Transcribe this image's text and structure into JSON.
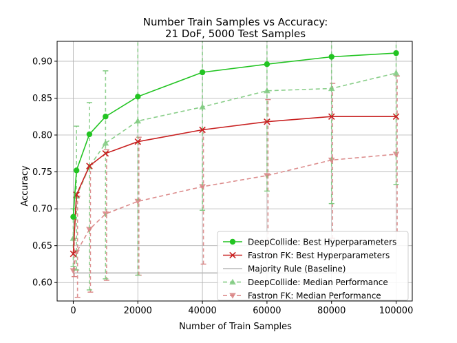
{
  "chart_data": {
    "type": "line",
    "title": "Number Train Samples vs Accuracy:",
    "subtitle": "21 DoF, 5000 Test Samples",
    "xlabel": "Number of Train Samples",
    "ylabel": "Accuracy",
    "xlim": [
      -5000,
      105000
    ],
    "ylim": [
      0.575,
      0.927
    ],
    "xticks": [
      0,
      20000,
      40000,
      60000,
      80000,
      100000
    ],
    "yticks": [
      0.6,
      0.65,
      0.7,
      0.75,
      0.8,
      0.85,
      0.9
    ],
    "grid": true,
    "legend_position": "lower right",
    "series": [
      {
        "name": "DeepCollide: Best Hyperparameters",
        "color": "#22c422",
        "style": "solid",
        "marker": "circle",
        "x": [
          0,
          1000,
          5000,
          10000,
          20000,
          40000,
          60000,
          80000,
          100000
        ],
        "y": [
          0.689,
          0.752,
          0.801,
          0.825,
          0.852,
          0.885,
          0.896,
          0.906,
          0.911
        ]
      },
      {
        "name": "Fastron FK: Best Hyperparameters",
        "color": "#c82020",
        "style": "solid",
        "marker": "x",
        "x": [
          0,
          1000,
          5000,
          10000,
          20000,
          40000,
          60000,
          80000,
          100000
        ],
        "y": [
          0.639,
          0.719,
          0.758,
          0.775,
          0.791,
          0.807,
          0.818,
          0.825,
          0.825
        ]
      },
      {
        "name": "Majority Rule (Baseline)",
        "color": "#b8b8b8",
        "style": "solid",
        "marker": "none",
        "x": [
          0,
          100000
        ],
        "y": [
          0.613,
          0.613
        ]
      },
      {
        "name": "DeepCollide: Median Performance",
        "color": "#7cc97c",
        "style": "dashed",
        "marker": "triangle-up",
        "x": [
          0,
          1000,
          5000,
          10000,
          20000,
          40000,
          60000,
          80000,
          100000
        ],
        "y": [
          0.66,
          0.717,
          0.757,
          0.789,
          0.819,
          0.838,
          0.86,
          0.863,
          0.884
        ],
        "err_low": [
          0.622,
          0.617,
          0.59,
          0.605,
          0.61,
          0.698,
          0.724,
          0.707,
          0.733
        ],
        "err_high": [
          0.7,
          0.812,
          0.844,
          0.887,
          0.935,
          0.935,
          0.935,
          0.935,
          0.935
        ]
      },
      {
        "name": "Fastron FK: Median Performance",
        "color": "#d88080",
        "style": "dashed",
        "marker": "triangle-down",
        "x": [
          0,
          1000,
          5000,
          10000,
          20000,
          40000,
          60000,
          80000,
          100000
        ],
        "y": [
          0.616,
          0.641,
          0.672,
          0.693,
          0.71,
          0.73,
          0.745,
          0.766,
          0.774
        ],
        "err_low": [
          0.608,
          0.58,
          0.587,
          0.603,
          0.61,
          0.625,
          0.64,
          0.66,
          0.669
        ],
        "err_high": [
          0.66,
          0.717,
          0.76,
          0.78,
          0.797,
          0.808,
          0.848,
          0.87,
          0.88
        ]
      }
    ]
  }
}
